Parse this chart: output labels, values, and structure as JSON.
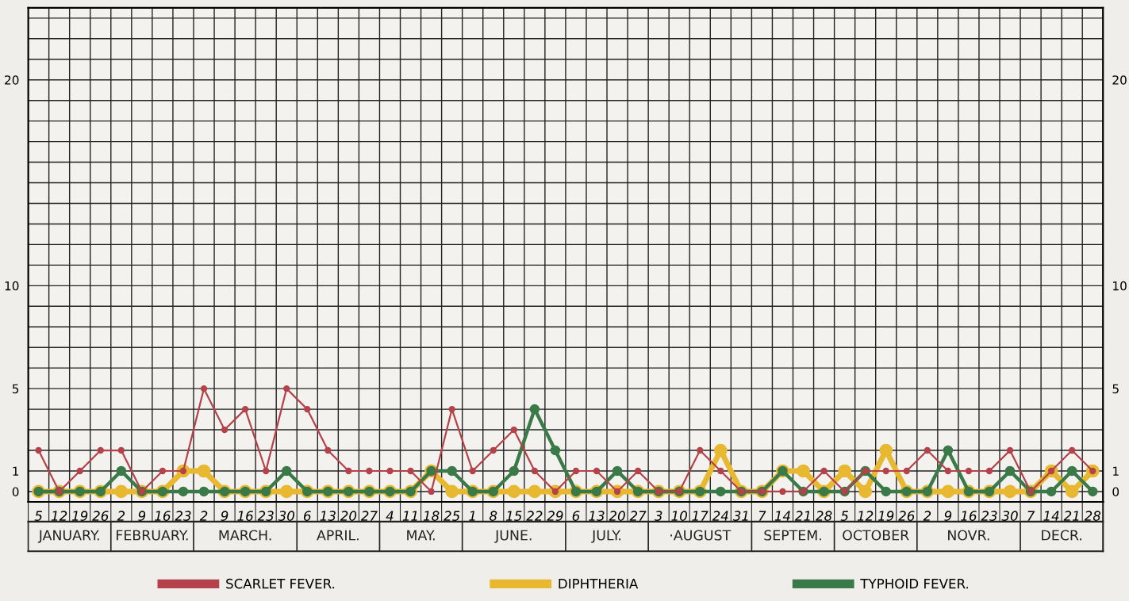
{
  "chart_data": {
    "type": "line",
    "categories": [
      "5",
      "12",
      "19",
      "26",
      "2",
      "9",
      "16",
      "23",
      "2",
      "9",
      "16",
      "23",
      "30",
      "6",
      "13",
      "20",
      "27",
      "4",
      "11",
      "18",
      "25",
      "1",
      "8",
      "15",
      "22",
      "29",
      "6",
      "13",
      "20",
      "27",
      "3",
      "10",
      "17",
      "24",
      "31",
      "7",
      "14",
      "21",
      "28",
      "5",
      "12",
      "19",
      "26",
      "2",
      "9",
      "16",
      "23",
      "30",
      "7",
      "14",
      "21",
      "28"
    ],
    "series": [
      {
        "name": "SCARLET FEVER.",
        "color": "#b5424a",
        "values": [
          2,
          0,
          1,
          2,
          2,
          0,
          1,
          1,
          5,
          3,
          4,
          1,
          5,
          4,
          2,
          1,
          1,
          1,
          1,
          0,
          4,
          1,
          2,
          3,
          1,
          0,
          1,
          1,
          0,
          1,
          0,
          0,
          2,
          1,
          0,
          0,
          0,
          0,
          1,
          0,
          1,
          1,
          1,
          2,
          1,
          1,
          1,
          2,
          0,
          1,
          2,
          1
        ]
      },
      {
        "name": "DIPHTHERIA",
        "color": "#e8b830",
        "values": [
          0,
          0,
          0,
          0,
          0,
          0,
          0,
          1,
          1,
          0,
          0,
          0,
          0,
          0,
          0,
          0,
          0,
          0,
          0,
          1,
          0,
          0,
          0,
          0,
          0,
          0,
          0,
          0,
          0,
          0,
          0,
          0,
          0,
          2,
          0,
          0,
          1,
          1,
          0,
          1,
          0,
          2,
          0,
          0,
          0,
          0,
          0,
          0,
          0,
          1,
          0,
          1
        ]
      },
      {
        "name": "TYPHOID FEVER.",
        "color": "#3a7a48",
        "values": [
          0,
          0,
          0,
          0,
          1,
          0,
          0,
          0,
          0,
          0,
          0,
          0,
          1,
          0,
          0,
          0,
          0,
          0,
          0,
          1,
          1,
          0,
          0,
          1,
          4,
          2,
          0,
          0,
          1,
          0,
          0,
          0,
          0,
          0,
          0,
          0,
          1,
          0,
          0,
          0,
          1,
          0,
          0,
          0,
          2,
          0,
          0,
          1,
          0,
          0,
          1,
          0
        ]
      }
    ],
    "annotations": [
      "JANUARY.",
      "FEBRUARY.",
      "MARCH.",
      "APRIL.",
      "MAY.",
      "JUNE.",
      "JULY.",
      "·AUGUST",
      "SEPTEM.",
      "OCTOBER",
      "NOVR.",
      "DECR."
    ],
    "ylim": [
      -0.5,
      23.5
    ],
    "yticks": [
      0,
      1,
      {
        "value": 2,
        "label": null
      },
      {
        "value": 3,
        "label": null
      },
      {
        "value": 4,
        "label": null
      },
      5,
      {
        "value": 6,
        "label": null
      },
      {
        "value": 7,
        "label": null
      },
      {
        "value": 8,
        "label": null
      },
      {
        "value": 9,
        "label": null
      },
      10,
      {
        "value": 11,
        "label": null
      },
      {
        "value": 12,
        "label": null
      },
      {
        "value": 13,
        "label": null
      },
      {
        "value": 14,
        "label": null
      },
      {
        "value": 15,
        "label": null
      },
      {
        "value": 16,
        "label": null
      },
      {
        "value": 17,
        "label": null
      },
      {
        "value": 18,
        "label": null
      },
      {
        "value": 19,
        "label": null
      },
      20,
      {
        "value": 21,
        "label": null
      },
      {
        "value": 22,
        "label": null
      },
      {
        "value": 23,
        "label": null
      }
    ],
    "y2lim": [
      -0.5,
      23.5
    ],
    "y2ticks": [
      0,
      1,
      5,
      10,
      20
    ],
    "grid": true,
    "legend": "bottom",
    "marker": "circle",
    "line_style": "solid"
  }
}
